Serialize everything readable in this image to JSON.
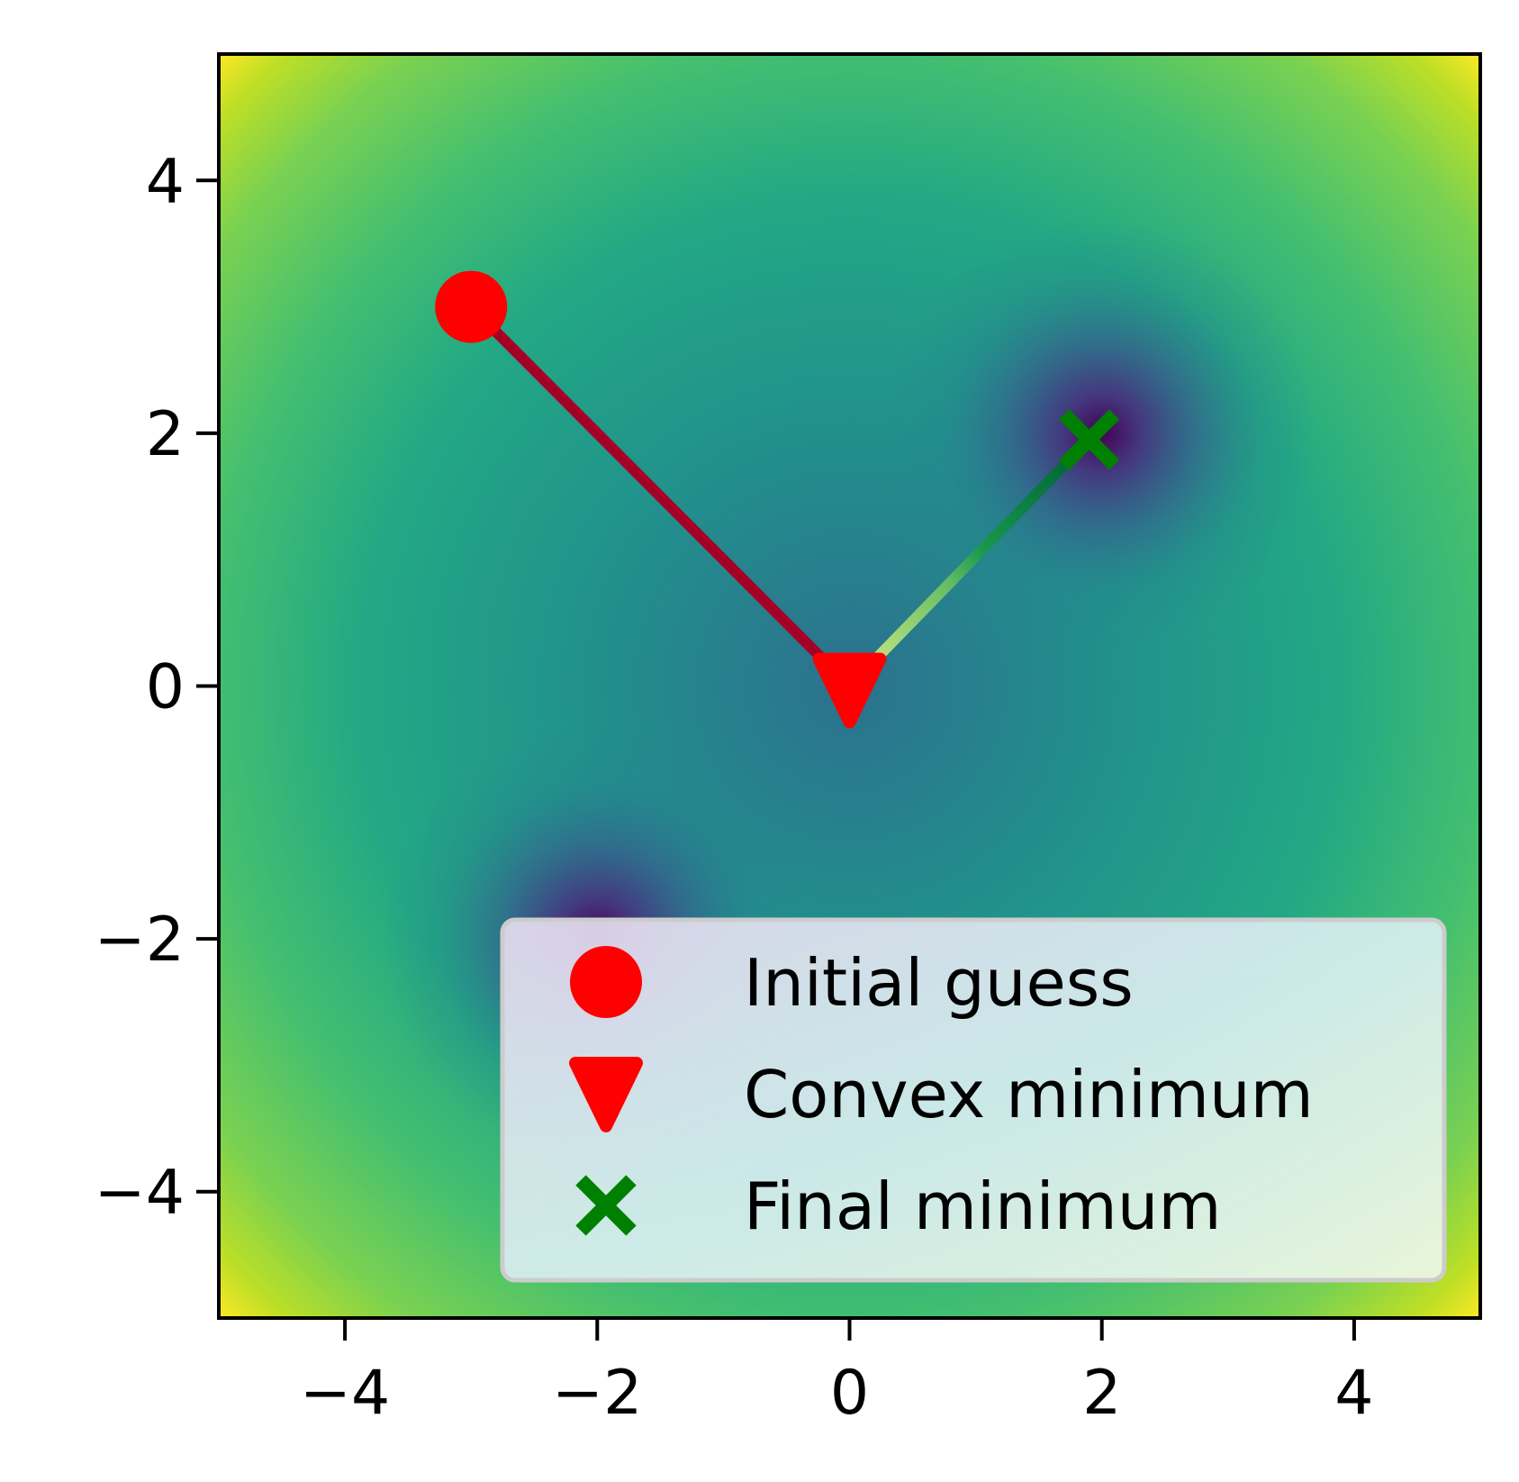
{
  "chart_data": {
    "type": "heatmap",
    "xlim": [
      -5,
      5
    ],
    "ylim": [
      -5,
      5
    ],
    "x_ticks": [
      -4,
      -2,
      0,
      2,
      4
    ],
    "y_ticks": [
      -4,
      -2,
      0,
      2,
      4
    ],
    "x_tick_labels": [
      "−4",
      "−2",
      "0",
      "2",
      "4"
    ],
    "y_tick_labels": [
      "−4",
      "−2",
      "0",
      "2",
      "4"
    ],
    "grid": false,
    "colormap": "viridis",
    "basin_centers": [
      [
        2,
        2
      ],
      [
        -2,
        -2
      ]
    ],
    "points": [
      {
        "name": "Initial guess",
        "x": -3,
        "y": 3,
        "marker": "circle",
        "color": "#ff0000"
      },
      {
        "name": "Convex minimum",
        "x": 0,
        "y": 0,
        "marker": "triangle-down",
        "color": "#ff0000"
      },
      {
        "name": "Final minimum",
        "x": 1.9,
        "y": 1.95,
        "marker": "x",
        "color": "#008000"
      }
    ],
    "paths": [
      {
        "from": [
          -3,
          3
        ],
        "to": [
          0,
          0
        ],
        "color": "#a50026"
      },
      {
        "from": [
          0,
          0
        ],
        "to": [
          1.9,
          1.95
        ],
        "color_start": "#d9ef8b",
        "color_end": "#006837"
      }
    ],
    "legend": {
      "placement": "lower right",
      "entries": [
        "Initial guess",
        "Convex minimum",
        "Final minimum"
      ]
    }
  }
}
